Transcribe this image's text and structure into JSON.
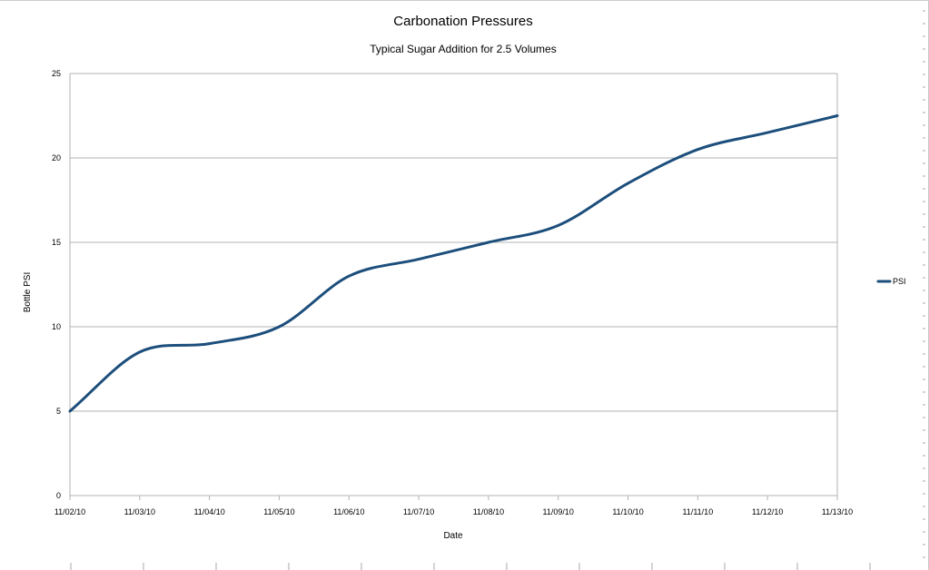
{
  "chart_data": {
    "type": "line",
    "title": "Carbonation Pressures",
    "subtitle": "Typical Sugar  Addition for 2.5 Volumes",
    "xlabel": "Date",
    "ylabel": "Bottle PSI",
    "categories": [
      "11/02/10",
      "11/03/10",
      "11/04/10",
      "11/05/10",
      "11/06/10",
      "11/07/10",
      "11/08/10",
      "11/09/10",
      "11/10/10",
      "11/11/10",
      "11/12/10",
      "11/13/10"
    ],
    "series": [
      {
        "name": "PSI",
        "values": [
          5,
          8.5,
          9,
          10,
          13,
          14,
          15,
          16,
          18.5,
          20.5,
          21.5,
          22.5
        ]
      }
    ],
    "ylim": [
      0,
      25
    ],
    "yticks": [
      0,
      5,
      10,
      15,
      20,
      25
    ],
    "grid": true,
    "smooth": true,
    "legend_position": "right",
    "colors": {
      "series": "#1c4e7c",
      "grid": "#b3b3b3",
      "axis": "#b3b3b3"
    }
  }
}
